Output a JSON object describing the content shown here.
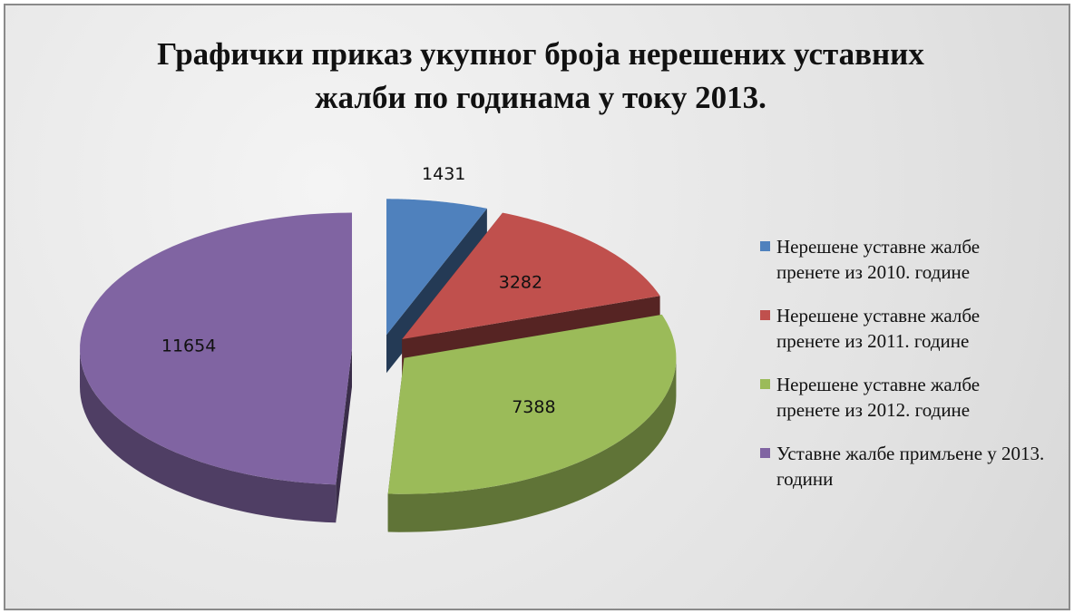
{
  "chart_data": {
    "type": "pie",
    "title": "Графички приказ укупног броја нерешених уставних жалби по годинама у току 2013.",
    "categories": [
      "Нерешене уставне жалбе пренете из 2010. године",
      "Нерешене уставне жалбе пренете из 2011. године",
      "Нерешене уставне жалбе пренете из 2012. године",
      "Уставне жалбе примљене у 2013. години"
    ],
    "values": [
      1431,
      3282,
      7388,
      11654
    ],
    "colors": [
      "#4f81bd",
      "#c0504d",
      "#9bbb59",
      "#8064a2"
    ],
    "legend": "right"
  }
}
